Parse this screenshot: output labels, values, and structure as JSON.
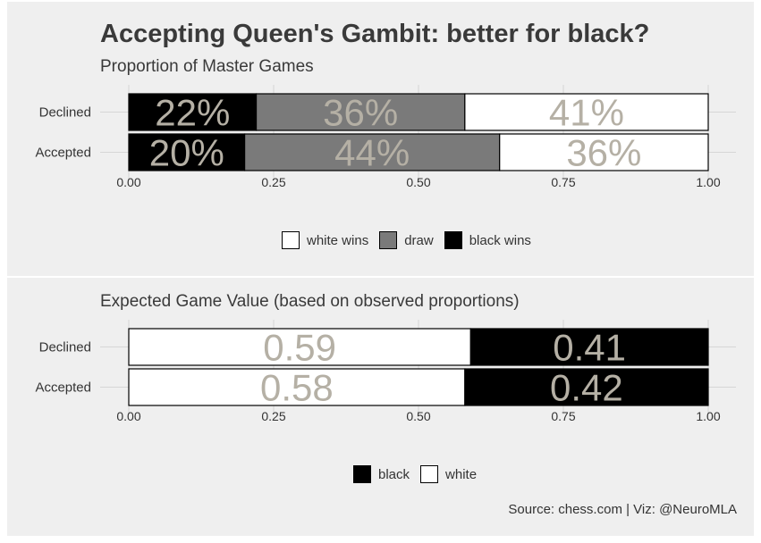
{
  "title": "Accepting Queen's Gambit: better for black?",
  "caption": "Source: chess.com | Viz: @NeuroMLA",
  "colors": {
    "white": "#ffffff",
    "draw": "#7a7a7a",
    "black": "#000000",
    "label": "#b5b0a5",
    "panel": "#efefef",
    "grid": "#d6d6d6"
  },
  "chart_data": [
    {
      "type": "bar",
      "orientation": "horizontal",
      "stacked": true,
      "subtitle": "Proportion of Master Games",
      "categories": [
        "Declined",
        "Accepted"
      ],
      "series": [
        {
          "name": "black wins",
          "color": "#000000",
          "values": [
            0.22,
            0.2
          ],
          "labels": [
            "22%",
            "20%"
          ]
        },
        {
          "name": "draw",
          "color": "#7a7a7a",
          "values": [
            0.36,
            0.44
          ],
          "labels": [
            "36%",
            "44%"
          ]
        },
        {
          "name": "white wins",
          "color": "#ffffff",
          "values": [
            0.41,
            0.36
          ],
          "labels": [
            "41%",
            "36%"
          ]
        }
      ],
      "xlim": [
        0,
        1
      ],
      "xticks": [
        "0.00",
        "0.25",
        "0.50",
        "0.75",
        "1.00"
      ],
      "legend": [
        {
          "name": "white wins",
          "color": "#ffffff"
        },
        {
          "name": "draw",
          "color": "#7a7a7a"
        },
        {
          "name": "black wins",
          "color": "#000000"
        }
      ],
      "legend_position": "bottom",
      "grid": true
    },
    {
      "type": "bar",
      "orientation": "horizontal",
      "stacked": true,
      "subtitle": "Expected Game Value (based on observed proportions)",
      "categories": [
        "Declined",
        "Accepted"
      ],
      "series": [
        {
          "name": "white",
          "color": "#ffffff",
          "values": [
            0.59,
            0.58
          ],
          "labels": [
            "0.59",
            "0.58"
          ]
        },
        {
          "name": "black",
          "color": "#000000",
          "values": [
            0.41,
            0.42
          ],
          "labels": [
            "0.41",
            "0.42"
          ]
        }
      ],
      "xlim": [
        0,
        1
      ],
      "xticks": [
        "0.00",
        "0.25",
        "0.50",
        "0.75",
        "1.00"
      ],
      "legend": [
        {
          "name": "black",
          "color": "#000000"
        },
        {
          "name": "white",
          "color": "#ffffff"
        }
      ],
      "legend_position": "bottom",
      "grid": true
    }
  ]
}
